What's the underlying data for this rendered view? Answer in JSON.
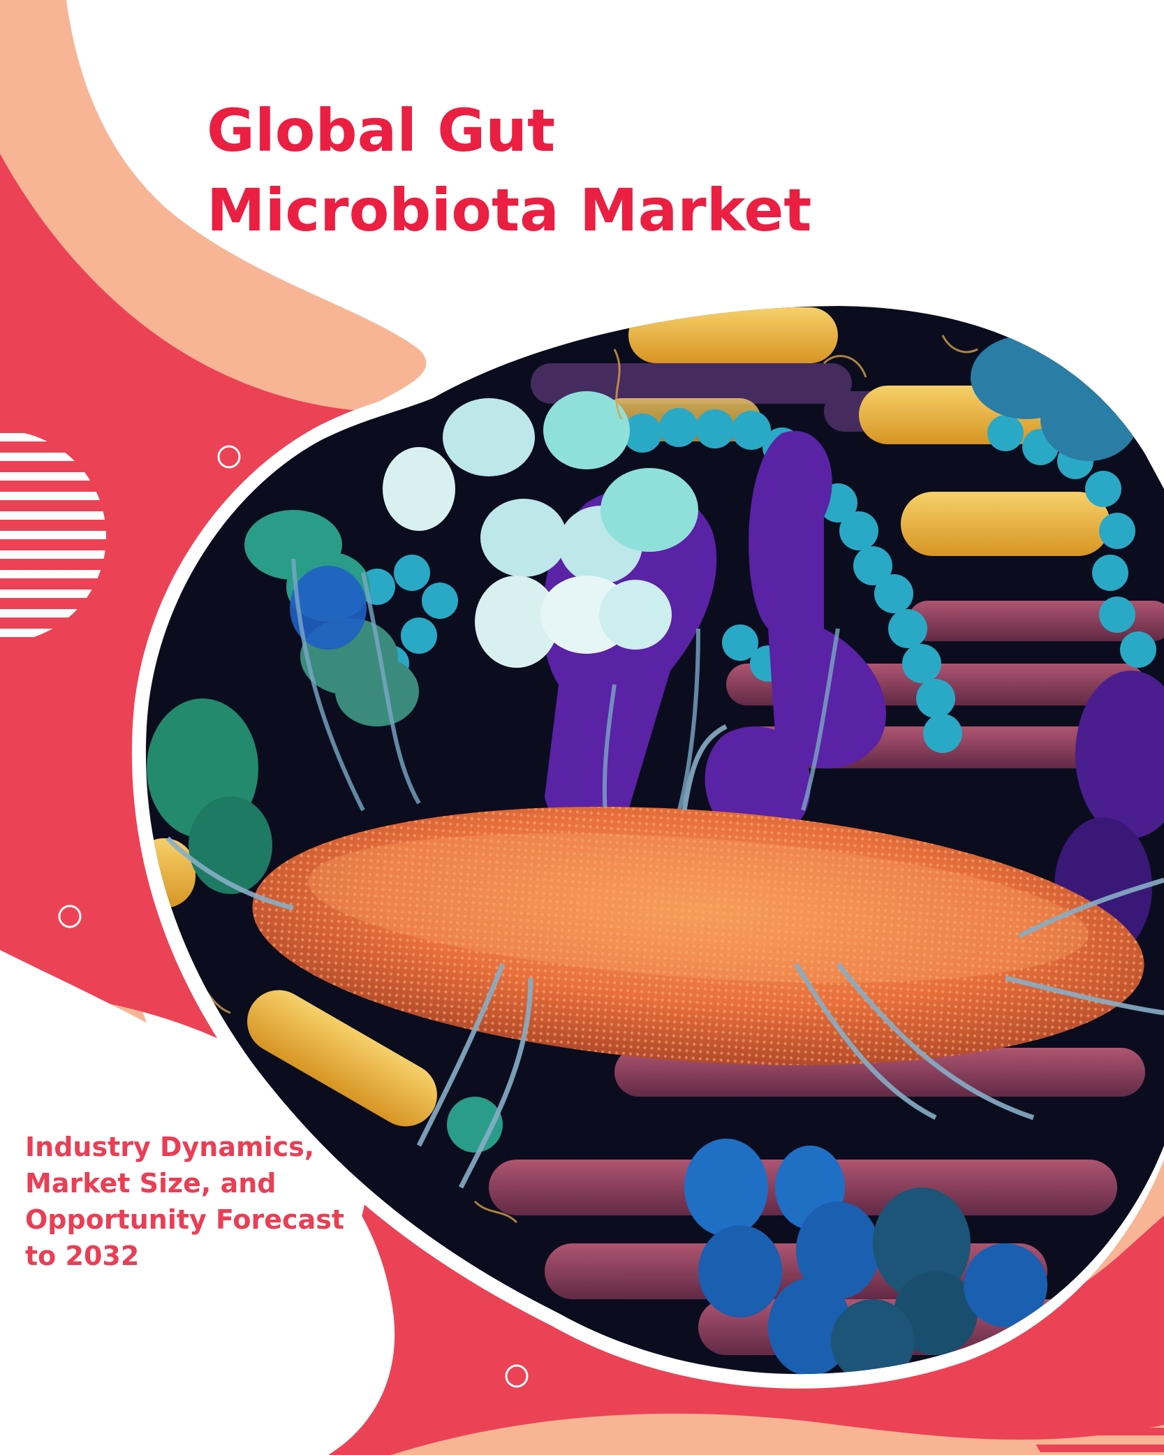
{
  "cover": {
    "title_lines": [
      "Global Gut",
      "Microbiota Market"
    ],
    "subtitle_lines": [
      "Industry Dynamics,",
      "Market Size, and",
      "Opportunity Forecast",
      "to 2032"
    ]
  },
  "colors": {
    "brand_red": "#ea1f42",
    "coral": "#ec4255",
    "peach": "#f8b595",
    "background": "#ffffff",
    "blob_bg": "#0b0d1e"
  },
  "illustration": "3d-render-of-gut-bacteria"
}
